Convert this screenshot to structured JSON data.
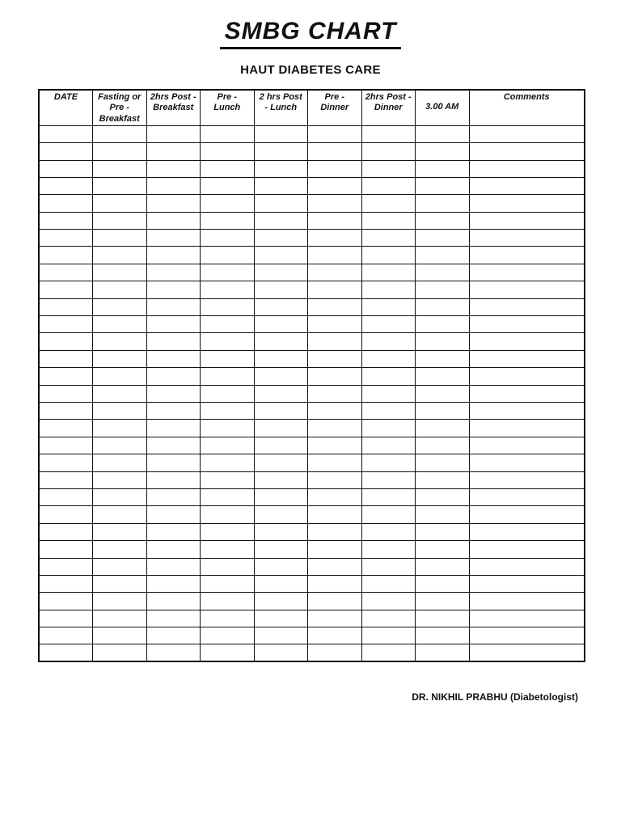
{
  "page": {
    "title": "SMBG CHART",
    "subtitle": "HAUT DIABETES CARE",
    "footer_signature": "DR. NIKHIL PRABHU (Diabetologist)"
  },
  "table": {
    "columns": [
      {
        "label": "DATE"
      },
      {
        "label": "Fasting or\nPre -\nBreakfast"
      },
      {
        "label": "2hrs Post -\nBreakfast"
      },
      {
        "label": "Pre -\nLunch"
      },
      {
        "label": "2 hrs Post\n- Lunch"
      },
      {
        "label": "Pre -\nDinner"
      },
      {
        "label": "2hrs Post -\nDinner"
      },
      {
        "label": "3.00 AM"
      },
      {
        "label": "Comments"
      }
    ],
    "row_count": 31,
    "rows_are_empty": true
  },
  "colors": {
    "ink": "#111111",
    "background": "#ffffff"
  }
}
